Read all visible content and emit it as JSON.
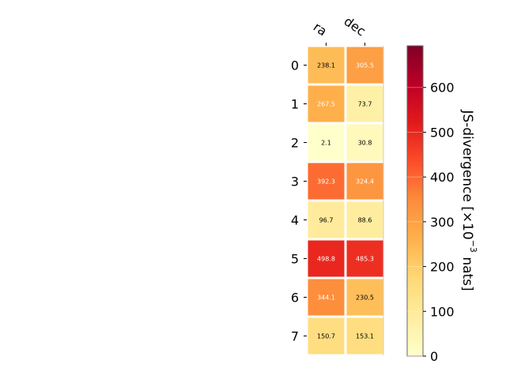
{
  "chart_data": {
    "type": "heatmap",
    "columns": [
      "ra",
      "dec"
    ],
    "rows": [
      "0",
      "1",
      "2",
      "3",
      "4",
      "5",
      "6",
      "7"
    ],
    "values": [
      [
        238.1,
        305.5
      ],
      [
        267.5,
        73.7
      ],
      [
        2.1,
        30.8
      ],
      [
        392.3,
        324.4
      ],
      [
        96.7,
        88.6
      ],
      [
        498.8,
        485.3
      ],
      [
        344.1,
        230.5
      ],
      [
        150.7,
        153.1
      ]
    ],
    "colorbar": {
      "label_main": "JS-divergence [×10",
      "label_exp": "−3",
      "label_tail": " nats]",
      "range": [
        0,
        693
      ],
      "ticks": [
        "0",
        "100",
        "200",
        "300",
        "400",
        "500",
        "600"
      ],
      "colormap": "YlOrRd"
    },
    "text_color_threshold": 260
  }
}
